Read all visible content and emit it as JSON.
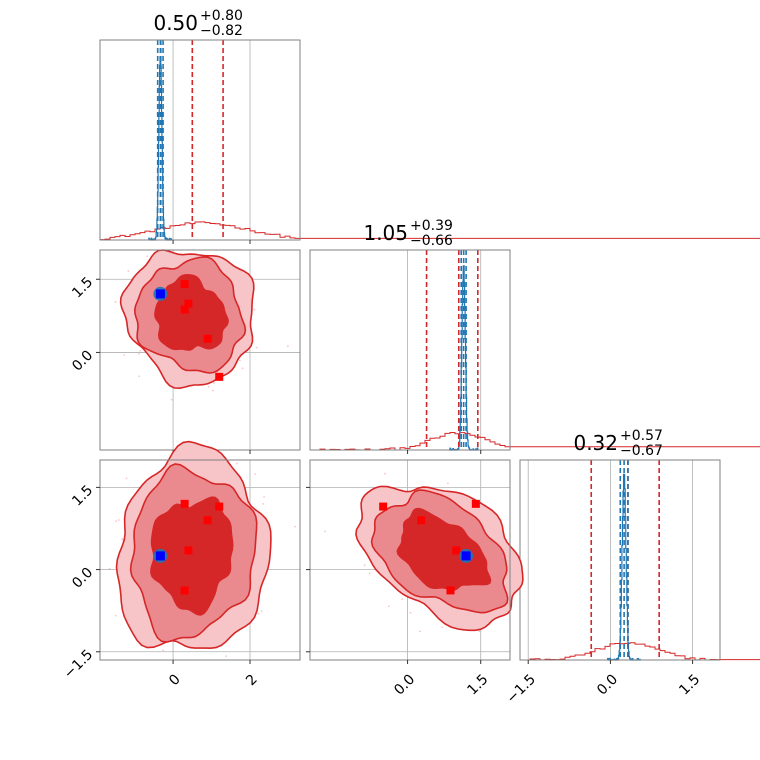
{
  "chart_data": {
    "type": "corner",
    "colors": {
      "posterior": "#d62728",
      "reference": "#1f77b4",
      "truth": "#0000ff",
      "points": "#ff0000",
      "grid": "#b0b0b0",
      "spine": "#808080"
    },
    "titles": [
      {
        "value": "0.50",
        "plus": "+0.80",
        "minus": "−0.82"
      },
      {
        "value": "1.05",
        "plus": "+0.39",
        "minus": "−0.66"
      },
      {
        "value": "0.32",
        "plus": "+0.57",
        "minus": "−0.67"
      }
    ],
    "ranges": [
      [
        -1.9,
        3.3
      ],
      [
        -2.0,
        2.1
      ],
      [
        -1.65,
        2.0
      ]
    ],
    "ticks": [
      {
        "values": [
          0,
          2
        ],
        "labels": [
          "0",
          "2"
        ]
      },
      {
        "values": [
          0.0,
          1.5
        ],
        "labels": [
          "0.0",
          "1.5"
        ]
      },
      {
        "values": [
          -1.5,
          0.0,
          1.5
        ],
        "labels": [
          "−1.5",
          "0.0",
          "1.5"
        ]
      }
    ],
    "red_quantiles": [
      [
        -0.32,
        0.5,
        1.3
      ],
      [
        0.39,
        1.05,
        1.44
      ],
      [
        -0.35,
        0.32,
        0.89
      ]
    ],
    "blue_quantiles": [
      [
        -0.4,
        -0.33,
        -0.26
      ],
      [
        1.1,
        1.15,
        1.2
      ],
      [
        0.18,
        0.25,
        0.32
      ]
    ],
    "truth": [
      -0.33,
      1.2,
      0.25
    ],
    "marker_points": [
      [
        0.3,
        1.4,
        1.2
      ],
      [
        0.4,
        1.0,
        0.35
      ],
      [
        0.9,
        0.28,
        0.9
      ],
      [
        1.2,
        -0.5,
        1.15
      ],
      [
        0.3,
        0.88,
        -0.38
      ]
    ],
    "hist_red_peak": [
      0.78,
      1.05,
      0.32
    ],
    "hist_red_width": [
      1.2,
      0.55,
      0.55
    ],
    "hist_blue_width": [
      0.04,
      0.035,
      0.035
    ]
  }
}
